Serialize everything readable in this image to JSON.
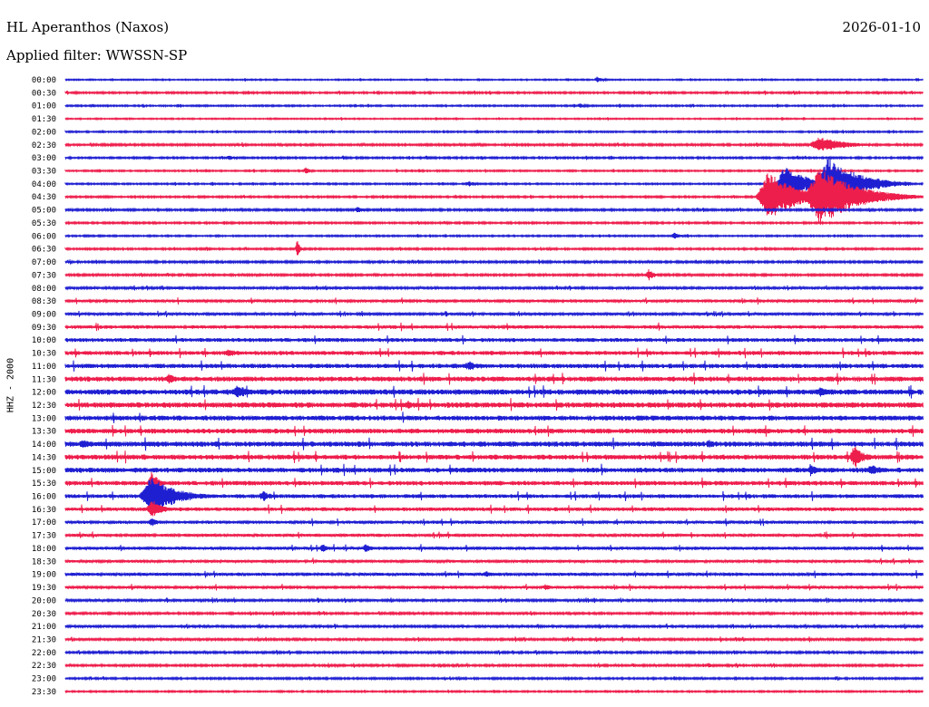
{
  "header": {
    "station": "HL Aperanthos (Naxos)",
    "date": "2026-01-10",
    "filter": "Applied filter: WWSSN-SP"
  },
  "channel_label": "HHZ - 2000",
  "colors": {
    "trace_a": "#1f1fd2",
    "trace_b": "#ee1e4c"
  },
  "chart_data": {
    "type": "line",
    "subtype": "helicorder",
    "y_tick_labels": [
      "00:00",
      "00:30",
      "01:00",
      "01:30",
      "02:00",
      "02:30",
      "03:00",
      "03:30",
      "04:00",
      "04:30",
      "05:00",
      "05:30",
      "06:00",
      "06:30",
      "07:00",
      "07:30",
      "08:00",
      "08:30",
      "09:00",
      "09:30",
      "10:00",
      "10:30",
      "11:00",
      "11:30",
      "12:00",
      "12:30",
      "13:00",
      "13:30",
      "14:00",
      "14:30",
      "15:00",
      "15:30",
      "16:00",
      "16:30",
      "17:00",
      "17:30",
      "18:00",
      "18:30",
      "19:00",
      "19:30",
      "20:00",
      "20:30",
      "21:00",
      "21:30",
      "22:00",
      "22:30",
      "23:00",
      "23:30"
    ],
    "noise_level": [
      0.5,
      0.7,
      0.6,
      0.5,
      0.6,
      0.8,
      0.7,
      0.6,
      0.6,
      0.7,
      0.8,
      0.7,
      0.6,
      0.7,
      0.8,
      0.8,
      0.9,
      1.1,
      1.0,
      1.4,
      1.6,
      1.7,
      1.8,
      2.0,
      2.2,
      2.2,
      2.0,
      2.0,
      2.1,
      2.0,
      2.0,
      1.8,
      1.6,
      1.5,
      1.3,
      1.2,
      1.3,
      1.1,
      1.3,
      1.1,
      0.9,
      0.8,
      0.9,
      0.9,
      0.8,
      0.8,
      0.7,
      0.6
    ],
    "events": [
      {
        "row": 0,
        "pos": 0.62,
        "amp": 4,
        "dur": 0.012
      },
      {
        "row": 2,
        "pos": 0.6,
        "amp": 3,
        "dur": 0.012
      },
      {
        "row": 5,
        "pos": 0.88,
        "amp": 9,
        "dur": 0.05
      },
      {
        "row": 6,
        "pos": 0.19,
        "amp": 3,
        "dur": 0.015
      },
      {
        "row": 7,
        "pos": 0.28,
        "amp": 4,
        "dur": 0.01
      },
      {
        "row": 8,
        "pos": 0.47,
        "amp": 3,
        "dur": 0.02
      },
      {
        "row": 8,
        "pos": 0.84,
        "amp": 22,
        "dur": 0.04
      },
      {
        "row": 8,
        "pos": 0.89,
        "amp": 30,
        "dur": 0.06
      },
      {
        "row": 9,
        "pos": 0.82,
        "amp": 30,
        "dur": 0.05
      },
      {
        "row": 9,
        "pos": 0.88,
        "amp": 34,
        "dur": 0.07
      },
      {
        "row": 9,
        "pos": 0.93,
        "amp": 10,
        "dur": 0.07
      },
      {
        "row": 10,
        "pos": 0.34,
        "amp": 4,
        "dur": 0.015
      },
      {
        "row": 11,
        "pos": 0.24,
        "amp": 3,
        "dur": 0.015
      },
      {
        "row": 12,
        "pos": 0.71,
        "amp": 6,
        "dur": 0.01
      },
      {
        "row": 13,
        "pos": 0.27,
        "amp": 12,
        "dur": 0.006
      },
      {
        "row": 15,
        "pos": 0.68,
        "amp": 7,
        "dur": 0.012
      },
      {
        "row": 21,
        "pos": 0.19,
        "amp": 5,
        "dur": 0.02
      },
      {
        "row": 22,
        "pos": 0.47,
        "amp": 5,
        "dur": 0.03
      },
      {
        "row": 23,
        "pos": 0.12,
        "amp": 6,
        "dur": 0.02
      },
      {
        "row": 24,
        "pos": 0.2,
        "amp": 8,
        "dur": 0.03
      },
      {
        "row": 24,
        "pos": 0.88,
        "amp": 6,
        "dur": 0.02
      },
      {
        "row": 25,
        "pos": 0.4,
        "amp": 5,
        "dur": 0.02
      },
      {
        "row": 28,
        "pos": 0.02,
        "amp": 6,
        "dur": 0.02
      },
      {
        "row": 28,
        "pos": 0.75,
        "amp": 6,
        "dur": 0.015
      },
      {
        "row": 29,
        "pos": 0.09,
        "amp": 5,
        "dur": 0.01
      },
      {
        "row": 29,
        "pos": 0.92,
        "amp": 14,
        "dur": 0.02
      },
      {
        "row": 30,
        "pos": 0.87,
        "amp": 6,
        "dur": 0.02
      },
      {
        "row": 30,
        "pos": 0.94,
        "amp": 6,
        "dur": 0.03
      },
      {
        "row": 31,
        "pos": 0.1,
        "amp": 14,
        "dur": 0.015
      },
      {
        "row": 32,
        "pos": 0.1,
        "amp": 22,
        "dur": 0.05
      },
      {
        "row": 32,
        "pos": 0.23,
        "amp": 6,
        "dur": 0.02
      },
      {
        "row": 33,
        "pos": 0.1,
        "amp": 12,
        "dur": 0.02
      },
      {
        "row": 34,
        "pos": 0.1,
        "amp": 6,
        "dur": 0.015
      },
      {
        "row": 36,
        "pos": 0.3,
        "amp": 5,
        "dur": 0.015
      },
      {
        "row": 36,
        "pos": 0.35,
        "amp": 5,
        "dur": 0.015
      },
      {
        "row": 38,
        "pos": 0.49,
        "amp": 4,
        "dur": 0.015
      },
      {
        "row": 39,
        "pos": 0.56,
        "amp": 4,
        "dur": 0.015
      },
      {
        "row": 42,
        "pos": 0.9,
        "amp": 3,
        "dur": 0.01
      },
      {
        "row": 45,
        "pos": 0.75,
        "amp": 3,
        "dur": 0.01
      }
    ]
  }
}
